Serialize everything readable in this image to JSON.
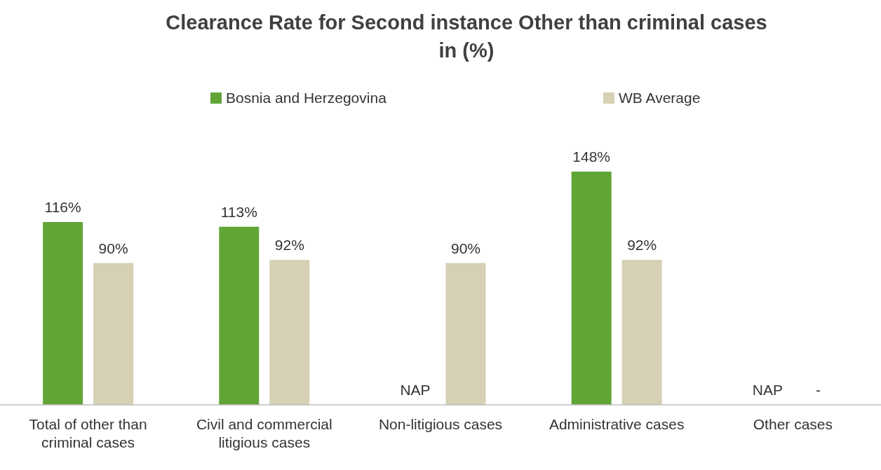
{
  "chart_data": {
    "type": "bar",
    "title": "Clearance Rate for Second instance Other than criminal cases in (%)",
    "categories": [
      "Total of other than criminal cases",
      "Civil and commercial litigious cases",
      "Non-litigious cases",
      "Administrative cases",
      "Other cases"
    ],
    "series": [
      {
        "name": "Bosnia and Herzegovina",
        "color": "#62a537",
        "values": [
          116,
          113,
          null,
          148,
          null
        ],
        "value_labels": [
          "116%",
          "113%",
          "NAP",
          "148%",
          "NAP"
        ]
      },
      {
        "name": "WB Average",
        "color": "#d6d0b4",
        "values": [
          90,
          92,
          90,
          92,
          null
        ],
        "value_labels": [
          "90%",
          "92%",
          "90%",
          "92%",
          "-"
        ]
      }
    ],
    "legend": "top"
  }
}
